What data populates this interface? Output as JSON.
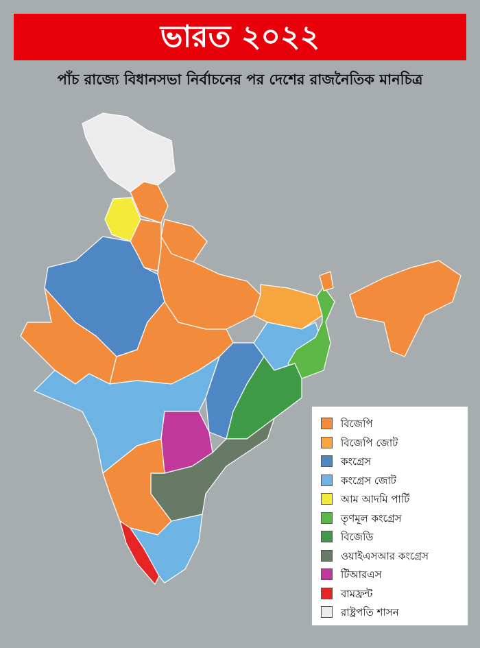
{
  "header": {
    "title": "ভারত ২০২২",
    "subtitle": "পাঁচ রাজ্যে বিধানসভা নির্বাচনের পর দেশের রাজনৈতিক মানচিত্র"
  },
  "legend": [
    {
      "label": "বিজেপি",
      "color": "#f28c3c"
    },
    {
      "label": "বিজেপি জোট",
      "color": "#f7a53e"
    },
    {
      "label": "কংগ্রেস",
      "color": "#4f87c5"
    },
    {
      "label": "কংগ্রেস জোট",
      "color": "#6db3e4"
    },
    {
      "label": "আম আদমি পার্টি",
      "color": "#f4ea3a"
    },
    {
      "label": "তৃণমূল কংগ্রেস",
      "color": "#5db746"
    },
    {
      "label": "বিজেডি",
      "color": "#3f9a47"
    },
    {
      "label": "ওয়াইএসআর কংগ্রেস",
      "color": "#667a66"
    },
    {
      "label": "টিআরএস",
      "color": "#c0399a"
    },
    {
      "label": "বামফ্রন্ট",
      "color": "#e52425"
    },
    {
      "label": "রাষ্ট্রপতি শাসন",
      "color": "#ececec"
    }
  ]
}
